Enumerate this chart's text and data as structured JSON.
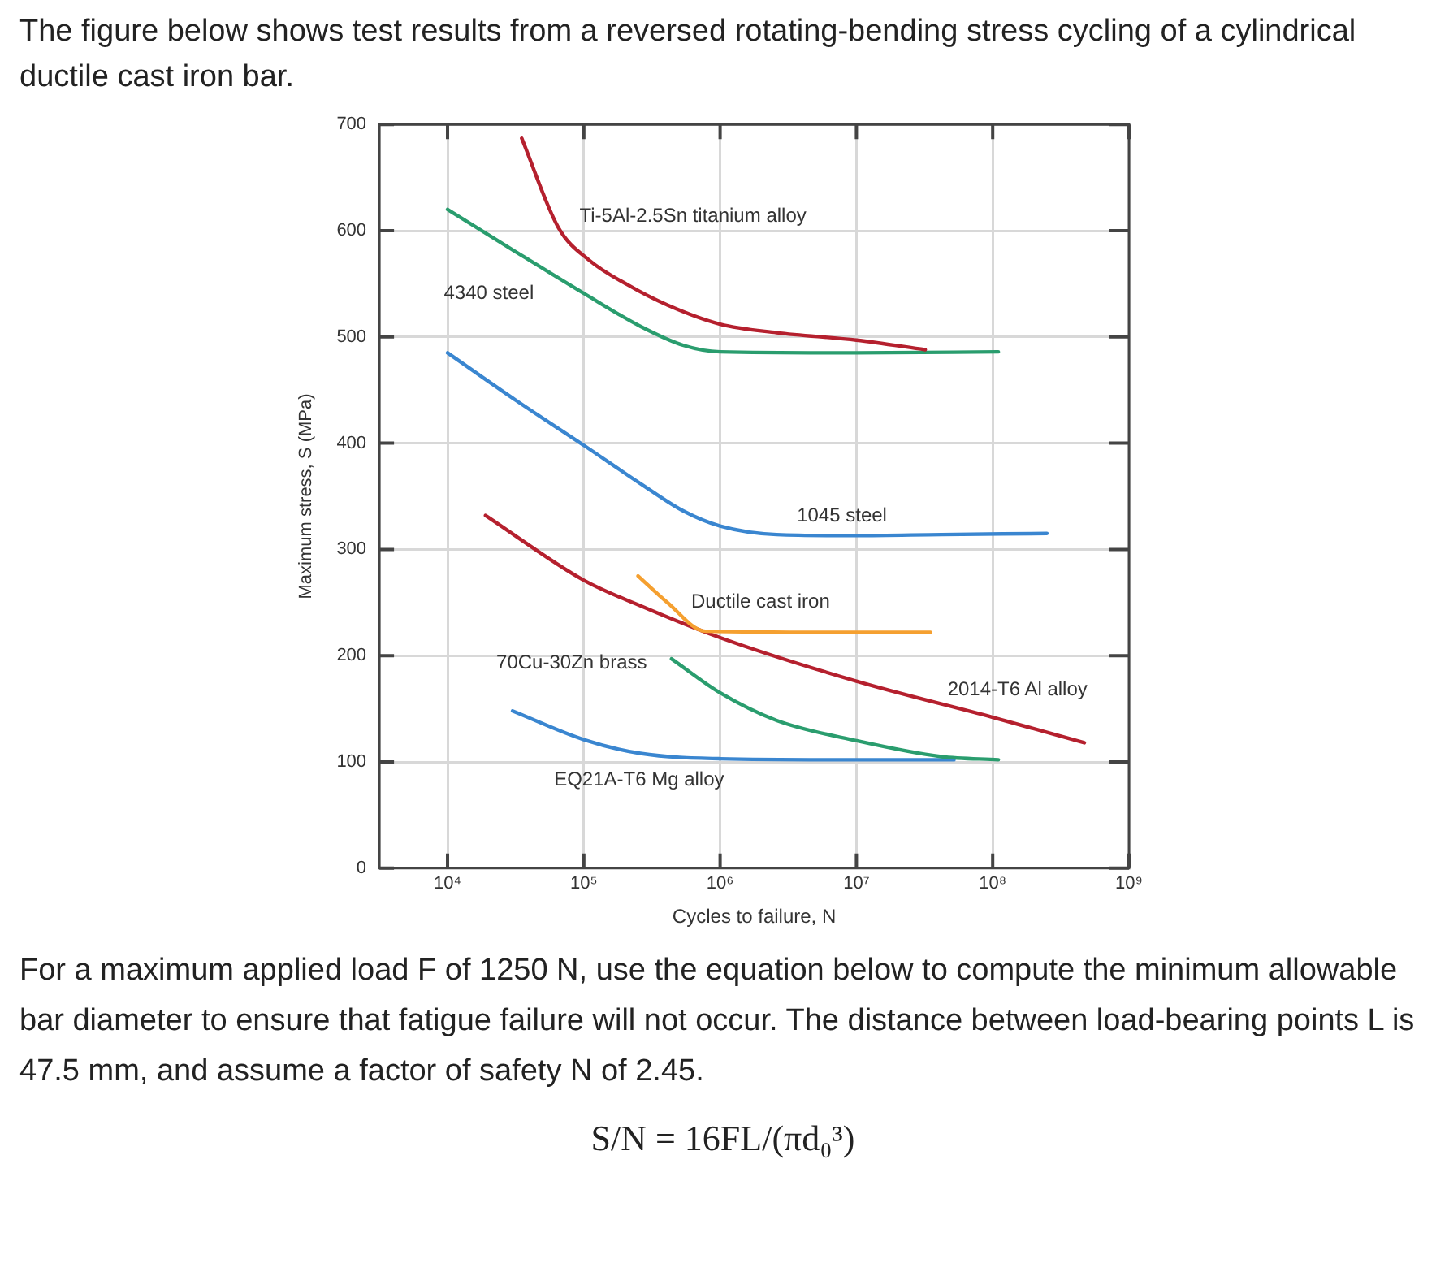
{
  "chart_data": {
    "type": "line",
    "title": "The figure below shows test results from a reversed rotating-bending stress cycling of a cylindrical ductile cast iron bar.",
    "xlabel": "Cycles to failure, N",
    "ylabel": "Maximum stress, S (MPa)",
    "log": "x",
    "grid": true,
    "marker": "none",
    "line_style": "solid",
    "xlim": [
      3162,
      1000000000
    ],
    "xticks": [
      {
        "value": 10000,
        "label": "10⁴"
      },
      {
        "value": 100000,
        "label": "10⁵"
      },
      {
        "value": 1000000,
        "label": "10⁶"
      },
      {
        "value": 10000000,
        "label": "10⁷"
      },
      {
        "value": 100000000,
        "label": "10⁸"
      },
      {
        "value": 1000000000,
        "label": "10⁹"
      }
    ],
    "ylim": [
      0,
      700
    ],
    "yticks": [
      0,
      100,
      200,
      300,
      400,
      500,
      600,
      700
    ],
    "series": [
      {
        "name": "Ti-5Al-2.5Sn titanium alloy",
        "color": "#b5202e",
        "x": [
          35000,
          65000,
          110000,
          210000,
          410000,
          1000000,
          2600000,
          10000000,
          32000000
        ],
        "values": [
          687,
          603,
          572,
          549,
          530,
          512,
          504,
          497,
          488
        ]
      },
      {
        "name": "4340 steel",
        "color": "#2a9d6e",
        "x": [
          10000,
          30000,
          100000,
          260000,
          540000,
          1000000,
          10000000,
          110000000
        ],
        "values": [
          620,
          582,
          541,
          510,
          492,
          486,
          485,
          486
        ]
      },
      {
        "name": "1045 steel",
        "color": "#3a86d0",
        "x": [
          10000,
          32000,
          100000,
          260000,
          540000,
          1000000,
          2600000,
          10000000,
          42000000,
          250000000
        ],
        "values": [
          485,
          440,
          398,
          362,
          336,
          322,
          314,
          313,
          314,
          315
        ]
      },
      {
        "name": "Ductile cast iron",
        "color": "#f5a030",
        "x": [
          250000,
          410000,
          780000,
          10000000,
          35000000
        ],
        "values": [
          275,
          250,
          223,
          222,
          222
        ]
      },
      {
        "name": "2014-T6 Al alloy",
        "color": "#b5202e",
        "x": [
          19000,
          100000,
          260000,
          1000000,
          10000000,
          100000000,
          470000000
        ],
        "values": [
          332,
          271,
          247,
          217,
          176,
          142,
          118
        ]
      },
      {
        "name": "70Cu-30Zn brass",
        "color": "#2a9d6e",
        "x": [
          440000,
          1000000,
          2600000,
          10000000,
          42000000,
          110000000
        ],
        "values": [
          197,
          165,
          139,
          120,
          105,
          102
        ]
      },
      {
        "name": "EQ21A-T6 Mg alloy",
        "color": "#3a86d0",
        "x": [
          30000,
          100000,
          260000,
          1000000,
          10000000,
          52000000
        ],
        "values": [
          148,
          121,
          108,
          103,
          102,
          102
        ]
      }
    ],
    "annotations": [
      "For a maximum applied load F of 1250 N, use the equation below to compute the minimum allowable bar diameter to ensure that fatigue failure will not occur. The distance between load-bearing points L is 47.5 mm, and assume a factor of safety N of 2.45.",
      "S/N = 16FL/(πd₀³)"
    ]
  }
}
